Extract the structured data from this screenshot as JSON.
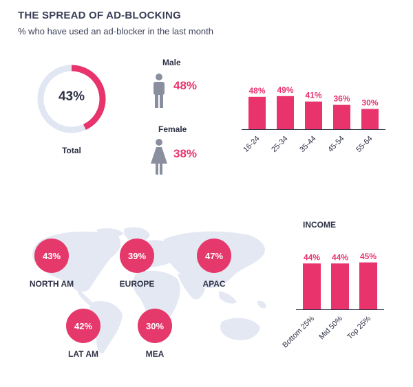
{
  "header": {
    "title": "THE SPREAD OF AD-BLOCKING",
    "subtitle": "% who have used an ad-blocker in the last month"
  },
  "colors": {
    "accent": "#e8336d",
    "accent_light_track": "#e1e6f3",
    "map": "#e4e8f3",
    "text": "#2e3145",
    "person_icon": "#8a8fa0"
  },
  "total": {
    "value": "43%",
    "label": "Total",
    "fraction": 0.43
  },
  "gender": {
    "male": {
      "label": "Male",
      "value": "48%",
      "icon": "male-person-icon"
    },
    "female": {
      "label": "Female",
      "value": "38%",
      "icon": "female-person-icon"
    }
  },
  "regions": [
    {
      "name": "NORTH AM",
      "value": "43%"
    },
    {
      "name": "EUROPE",
      "value": "39%"
    },
    {
      "name": "APAC",
      "value": "47%"
    },
    {
      "name": "LAT AM",
      "value": "42%"
    },
    {
      "name": "MEA",
      "value": "30%"
    }
  ],
  "income_title": "INCOME",
  "chart_data": [
    {
      "type": "pie",
      "title": "",
      "categories": [
        "Total"
      ],
      "values": [
        43
      ],
      "ylim": [
        0,
        100
      ]
    },
    {
      "type": "bar",
      "title": "",
      "xlabel": "",
      "ylabel": "",
      "categories": [
        "16-24",
        "25-34",
        "35-44",
        "45-54",
        "55-64"
      ],
      "values": [
        48,
        49,
        41,
        36,
        30
      ],
      "data_labels": [
        "48%",
        "49%",
        "41%",
        "36%",
        "30%"
      ],
      "ylim": [
        0,
        60
      ],
      "grid": false
    },
    {
      "type": "bar",
      "title": "INCOME",
      "xlabel": "",
      "ylabel": "",
      "categories": [
        "Bottom 25%",
        "Mid 50%",
        "Top 25%"
      ],
      "values": [
        44,
        44,
        45
      ],
      "data_labels": [
        "44%",
        "44%",
        "45%"
      ],
      "ylim": [
        0,
        60
      ],
      "grid": false
    }
  ]
}
